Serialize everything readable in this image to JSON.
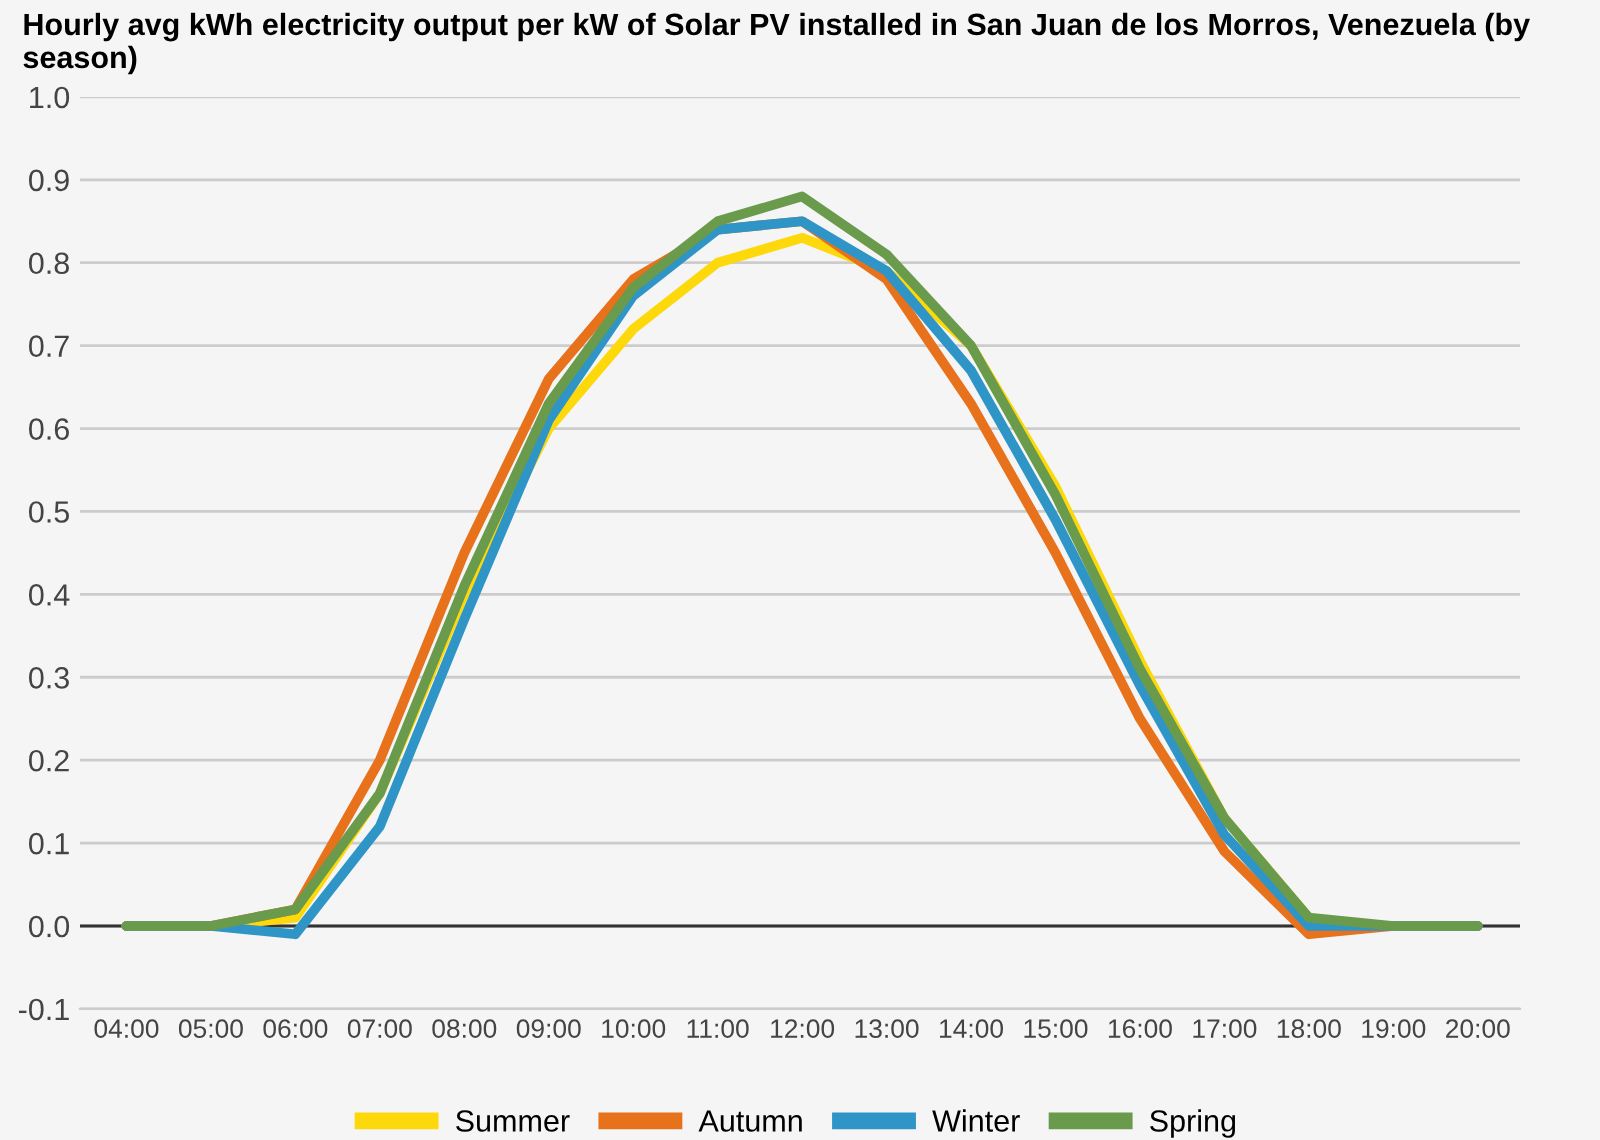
{
  "chart_data": {
    "type": "line",
    "title": "Hourly avg kWh electricity output per kW of Solar PV installed in San Juan de los Morros, Venezuela (by season)",
    "x": [
      4,
      5,
      6,
      7,
      8,
      9,
      10,
      11,
      12,
      13,
      14,
      15,
      16,
      17,
      18,
      19,
      20
    ],
    "series": [
      {
        "name": "Summer",
        "color": "#fdd80a",
        "values": [
          0,
          0,
          0.01,
          0.16,
          0.4,
          0.6,
          0.72,
          0.8,
          0.83,
          0.79,
          0.7,
          0.53,
          0.32,
          0.13,
          0.01,
          null,
          null
        ]
      },
      {
        "name": "Autumn",
        "color": "#e8711c",
        "values": [
          0,
          0,
          0.02,
          0.2,
          0.45,
          0.66,
          0.78,
          0.84,
          0.85,
          0.78,
          0.63,
          0.45,
          0.25,
          0.09,
          -0.01,
          0,
          0
        ]
      },
      {
        "name": "Winter",
        "color": "#2e95c6",
        "values": [
          0,
          0,
          -0.01,
          0.12,
          0.37,
          0.61,
          0.76,
          0.84,
          0.85,
          0.79,
          0.67,
          0.49,
          0.29,
          0.11,
          0,
          0,
          0
        ]
      },
      {
        "name": "Spring",
        "color": "#6a9a4b",
        "values": [
          0,
          0,
          0.02,
          0.16,
          0.41,
          0.63,
          0.77,
          0.85,
          0.88,
          0.81,
          0.7,
          0.52,
          0.31,
          0.13,
          0.01,
          0,
          0
        ]
      }
    ],
    "xlim": [
      3.45,
      20.5
    ],
    "xticks": [
      {
        "value": 4,
        "label": "04:00"
      },
      {
        "value": 5,
        "label": "05:00"
      },
      {
        "value": 6,
        "label": "06:00"
      },
      {
        "value": 7,
        "label": "07:00"
      },
      {
        "value": 8,
        "label": "08:00"
      },
      {
        "value": 9,
        "label": "09:00"
      },
      {
        "value": 10,
        "label": "10:00"
      },
      {
        "value": 11,
        "label": "11:00"
      },
      {
        "value": 12,
        "label": "12:00"
      },
      {
        "value": 13,
        "label": "13:00"
      },
      {
        "value": 14,
        "label": "14:00"
      },
      {
        "value": 15,
        "label": "15:00"
      },
      {
        "value": 16,
        "label": "16:00"
      },
      {
        "value": 17,
        "label": "17:00"
      },
      {
        "value": 18,
        "label": "18:00"
      },
      {
        "value": 19,
        "label": "19:00"
      },
      {
        "value": 20,
        "label": "20:00"
      }
    ],
    "ylim": [
      -0.1,
      1.0
    ],
    "yticks": [
      -0.1,
      {
        "value": 0,
        "label": "0.0"
      },
      0.1,
      0.2,
      0.3,
      0.4,
      0.5,
      0.6,
      0.7,
      0.8,
      0.9,
      {
        "value": 1,
        "label": "1.0"
      }
    ],
    "ref_lines": [
      {
        "axis": "y",
        "value": 0,
        "label": null,
        "color": "#333333"
      }
    ],
    "grid": "y",
    "legend": "bottom",
    "marker": "none",
    "line_style": "solid"
  }
}
